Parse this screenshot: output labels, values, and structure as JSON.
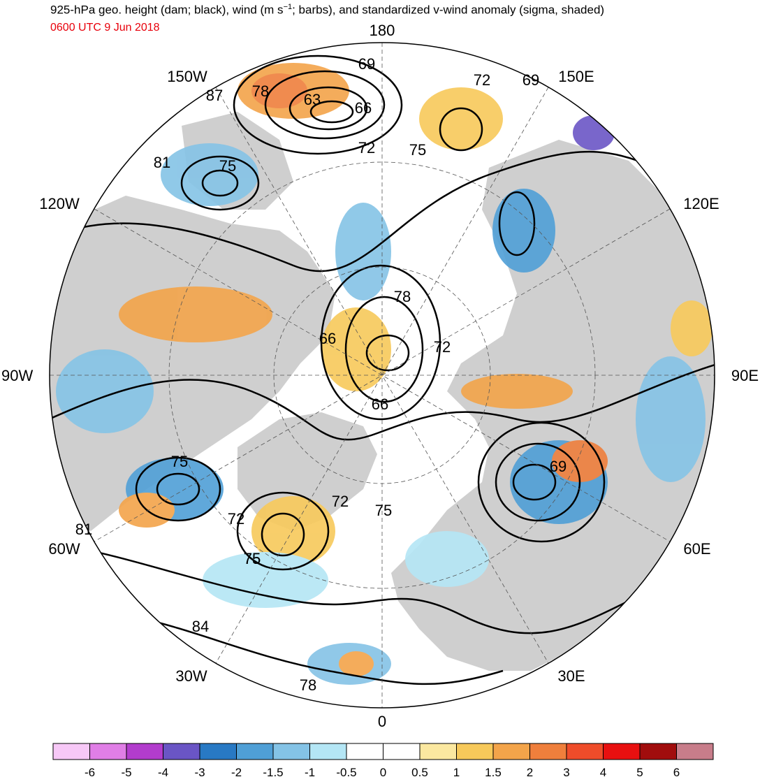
{
  "title": "925-hPa geo. height (dam; black), wind (m s⁻¹; barbs), and standardized v-wind anomaly (sigma, shaded)",
  "title_parts": {
    "before": "925-hPa geo. height (dam; black), wind (m s",
    "sup": "−1",
    "after": "; barbs), and standardized v-wind anomaly (sigma, shaded)"
  },
  "valid_time": "0600 UTC 9 Jun 2018",
  "longitude_labels": {
    "north": "180",
    "south": "0",
    "west": "90W",
    "east": "90E",
    "nw150": "150W",
    "nw120": "120W",
    "sw60": "60W",
    "sw30": "30W",
    "ne150": "150E",
    "ne120": "120E",
    "se60": "60E",
    "se30": "30E"
  },
  "contour_labels": [
    "69",
    "63",
    "66",
    "72",
    "75",
    "78",
    "87",
    "81",
    "75",
    "72",
    "69",
    "78",
    "66",
    "72",
    "66",
    "75",
    "72",
    "75",
    "69",
    "75",
    "72",
    "81",
    "75",
    "84",
    "78"
  ],
  "colorbar": {
    "ticks": [
      "-6",
      "-5",
      "-4",
      "-3",
      "-2",
      "-1.5",
      "-1",
      "-0.5",
      "0",
      "0.5",
      "1",
      "1.5",
      "2",
      "3",
      "4",
      "5",
      "6"
    ],
    "colors": [
      "#f7c8f7",
      "#e07ee6",
      "#b23ccd",
      "#6a55c5",
      "#2879c4",
      "#4f9fd6",
      "#84c3e6",
      "#b4e6f5",
      "#ffffff",
      "#ffffff",
      "#fbe8a0",
      "#f7c95a",
      "#f3a44a",
      "#ef7f3c",
      "#ef4c2a",
      "#e81010",
      "#a10d0d",
      "#c87d8a"
    ]
  }
}
